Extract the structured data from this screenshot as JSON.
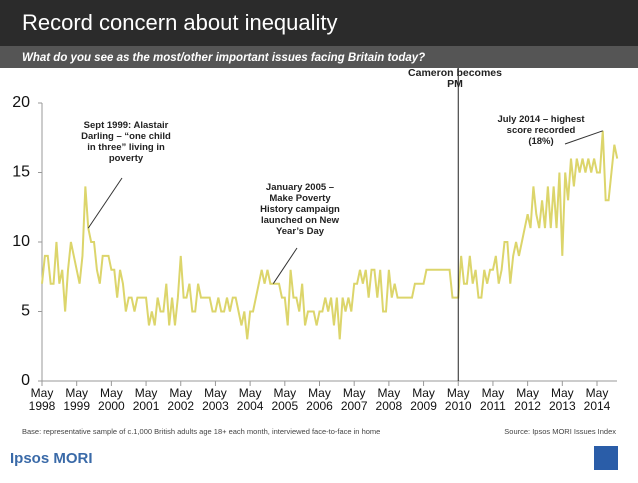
{
  "chart_data": {
    "type": "line",
    "title": "Record concern about inequality",
    "subtitle": "What do you see as the most/other important issues facing Britain today?",
    "categories": [
      "May 1998",
      null,
      null,
      null,
      null,
      null,
      null,
      null,
      null,
      null,
      null,
      null,
      "May 1999",
      null,
      null,
      null,
      null,
      null,
      null,
      null,
      null,
      null,
      null,
      null,
      "May 2000",
      null,
      null,
      null,
      null,
      null,
      null,
      null,
      null,
      null,
      null,
      null,
      "May 2001",
      null,
      null,
      null,
      null,
      null,
      null,
      null,
      null,
      null,
      null,
      null,
      "May 2002",
      null,
      null,
      null,
      null,
      null,
      null,
      null,
      null,
      null,
      null,
      null,
      "May 2003",
      null,
      null,
      null,
      null,
      null,
      null,
      null,
      null,
      null,
      null,
      null,
      "May 2004",
      null,
      null,
      null,
      null,
      null,
      null,
      null,
      null,
      null,
      null,
      null,
      "May 2005",
      null,
      null,
      null,
      null,
      null,
      null,
      null,
      null,
      null,
      null,
      null,
      "May 2006",
      null,
      null,
      null,
      null,
      null,
      null,
      null,
      null,
      null,
      null,
      null,
      "May 2007",
      null,
      null,
      null,
      null,
      null,
      null,
      null,
      null,
      null,
      null,
      null,
      "May 2008",
      null,
      null,
      null,
      null,
      null,
      null,
      null,
      null,
      null,
      null,
      null,
      "May 2009",
      null,
      null,
      null,
      null,
      null,
      null,
      null,
      null,
      null,
      null,
      null,
      "May 2010",
      null,
      null,
      null,
      null,
      null,
      null,
      null,
      null,
      null,
      null,
      null,
      "May 2011",
      null,
      null,
      null,
      null,
      null,
      null,
      null,
      null,
      null,
      null,
      null,
      "May 2012",
      null,
      null,
      null,
      null,
      null,
      null,
      null,
      null,
      null,
      null,
      null,
      "May 2013",
      null,
      null,
      null,
      null,
      null,
      null,
      null,
      null,
      null,
      null,
      null,
      "May 2014",
      null,
      null,
      null,
      null,
      null,
      null,
      null
    ],
    "series": [
      {
        "name": "Inequality",
        "color": "#dcd56b",
        "values": [
          7,
          9,
          9,
          7,
          7,
          10,
          7,
          8,
          5,
          8,
          10,
          9,
          8,
          7,
          9,
          14,
          11,
          10,
          10,
          8,
          7,
          9,
          9,
          9,
          8,
          8,
          6,
          8,
          7,
          5,
          6,
          6,
          5,
          6,
          6,
          6,
          6,
          4,
          5,
          4,
          6,
          5,
          5,
          7,
          4,
          6,
          4,
          6,
          9,
          6,
          6,
          7,
          5,
          5,
          7,
          6,
          6,
          6,
          6,
          5,
          5,
          6,
          5,
          5,
          6,
          5,
          6,
          6,
          5,
          4,
          5,
          3,
          5,
          5,
          6,
          7,
          8,
          7,
          8,
          7,
          7,
          7,
          7,
          6,
          6,
          4,
          8,
          6,
          6,
          5,
          7,
          4,
          5,
          5,
          5,
          4,
          5,
          5,
          6,
          5,
          6,
          4,
          6,
          3,
          6,
          5,
          6,
          5,
          7,
          7,
          8,
          7,
          8,
          6,
          8,
          8,
          6,
          8,
          5,
          5,
          8,
          6,
          7,
          6,
          6,
          6,
          6,
          6,
          6,
          7,
          7,
          7,
          7,
          8,
          8,
          8,
          8,
          8,
          8,
          8,
          8,
          8,
          6,
          6,
          6,
          9,
          7,
          7,
          9,
          7,
          8,
          6,
          6,
          8,
          7,
          8,
          8,
          9,
          7,
          8,
          10,
          10,
          7,
          9,
          10,
          9,
          10,
          11,
          12,
          11,
          14,
          12,
          11,
          13,
          11,
          14,
          11,
          14,
          11,
          15,
          9,
          15,
          13,
          16,
          14,
          16,
          15,
          16,
          15,
          16,
          15,
          16,
          15,
          15,
          18,
          13,
          13,
          15,
          17,
          16
        ]
      }
    ],
    "ylim": [
      0,
      20
    ],
    "yticks": [
      0,
      5,
      10,
      15,
      20
    ],
    "annotations": [
      "Sept 1999: Alastair Darling – “one child in three” living in poverty",
      "January 2005 – Make Poverty History campaign launched on New Year’s Day",
      "July 2014 – highest score recorded (18%)",
      "Cameron becomes PM"
    ],
    "footnote": "Base: representative sample of c.1,000 British adults age 18+ each month, interviewed face-to-face in home",
    "source": "Source: Ipsos MORI Issues Index",
    "brand": "Ipsos MORI"
  }
}
